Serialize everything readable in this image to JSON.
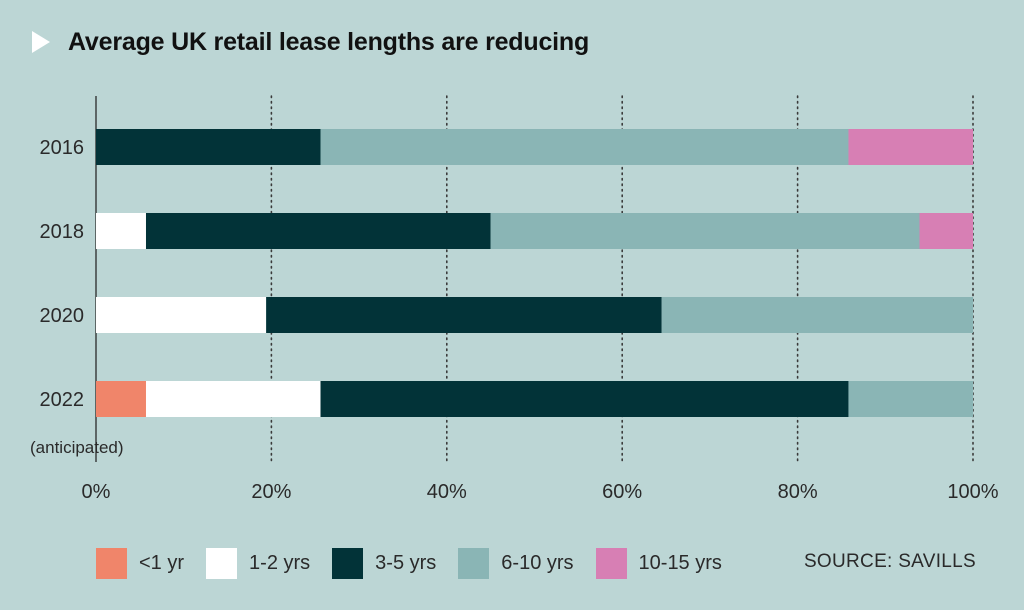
{
  "header": {
    "title": "Average UK retail lease lengths are reducing"
  },
  "source": "SOURCE: SAVILLS",
  "colors": {
    "background": "#bcd6d5",
    "<1 yr": "#f0856a",
    "1-2 yrs": "#ffffff",
    "3-5 yrs": "#023338",
    "6-10 yrs": "#8ab5b5",
    "10-15 yrs": "#d77fb4"
  },
  "chart_data": {
    "type": "bar",
    "orientation": "horizontal",
    "stacked": true,
    "title": "Average UK retail lease lengths are reducing",
    "categories": [
      "2016",
      "2018",
      "2020",
      "2022"
    ],
    "category_notes": {
      "2022": "(anticipated)"
    },
    "xlim": [
      0,
      100
    ],
    "x_ticks": [
      "0%",
      "20%",
      "40%",
      "60%",
      "80%",
      "100%"
    ],
    "grid": "vertical dotted",
    "legend_position": "bottom",
    "series": [
      {
        "name": "<1 yr",
        "values": [
          0,
          0,
          0,
          5.7
        ]
      },
      {
        "name": "1-2 yrs",
        "values": [
          0,
          5.7,
          19.4,
          19.9
        ]
      },
      {
        "name": "3-5 yrs",
        "values": [
          25.6,
          39.3,
          45.1,
          60.2
        ]
      },
      {
        "name": "6-10 yrs",
        "values": [
          60.2,
          48.9,
          35.5,
          14.2
        ]
      },
      {
        "name": "10-15 yrs",
        "values": [
          14.2,
          6.1,
          0,
          0
        ]
      }
    ]
  }
}
